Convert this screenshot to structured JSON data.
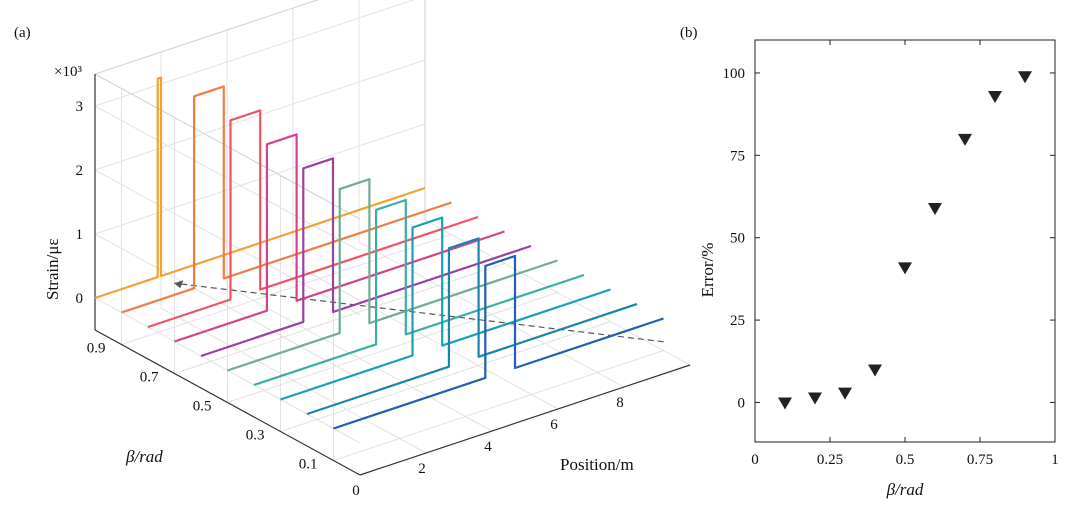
{
  "figure": {
    "panel_a_label": "(a)",
    "panel_b_label": "(b)"
  },
  "chart_data": [
    {
      "type": "line",
      "title": "",
      "xlabel": "Position/m",
      "ylabel": "β/rad",
      "zlabel": "Strain/με",
      "z_multiplier": "×10³",
      "x_ticks": [
        "0",
        "2",
        "4",
        "6",
        "8"
      ],
      "y_ticks": [
        "0.9",
        "0.7",
        "0.5",
        "0.3",
        "0.1"
      ],
      "z_ticks": [
        "0",
        "1",
        "2",
        "3"
      ],
      "xlim": [
        0,
        10
      ],
      "ylim": [
        0,
        1
      ],
      "zlim": [
        -0.5,
        3.5
      ],
      "grid": true,
      "series": [
        {
          "beta": 0.1,
          "color": "#1f5fb4",
          "segments": [
            [
              0,
              0
            ],
            [
              4.6,
              0
            ],
            [
              4.6,
              1.75
            ],
            [
              5.5,
              1.75
            ],
            [
              5.5,
              0
            ],
            [
              10,
              0
            ]
          ]
        },
        {
          "beta": 0.2,
          "color": "#1784b5",
          "segments": [
            [
              0,
              0
            ],
            [
              4.3,
              0
            ],
            [
              4.3,
              1.85
            ],
            [
              5.2,
              1.85
            ],
            [
              5.2,
              0
            ],
            [
              10,
              0
            ]
          ]
        },
        {
          "beta": 0.3,
          "color": "#19a0b4",
          "segments": [
            [
              0,
              0
            ],
            [
              4.0,
              0
            ],
            [
              4.0,
              2.0
            ],
            [
              4.9,
              2.0
            ],
            [
              4.9,
              0
            ],
            [
              10,
              0
            ]
          ]
        },
        {
          "beta": 0.4,
          "color": "#3aaea6",
          "segments": [
            [
              0,
              0
            ],
            [
              3.7,
              0
            ],
            [
              3.7,
              2.1
            ],
            [
              4.6,
              2.1
            ],
            [
              4.6,
              0
            ],
            [
              10,
              0
            ]
          ]
        },
        {
          "beta": 0.5,
          "color": "#6fac95",
          "segments": [
            [
              0,
              0
            ],
            [
              3.4,
              0
            ],
            [
              3.4,
              2.25
            ],
            [
              4.3,
              2.25
            ],
            [
              4.3,
              0
            ],
            [
              10,
              0
            ]
          ]
        },
        {
          "beta": 0.6,
          "color": "#9b3fa0",
          "segments": [
            [
              0,
              0
            ],
            [
              3.1,
              0
            ],
            [
              3.1,
              2.4
            ],
            [
              4.0,
              2.4
            ],
            [
              4.0,
              0
            ],
            [
              10,
              0
            ]
          ]
        },
        {
          "beta": 0.7,
          "color": "#d4418e",
          "segments": [
            [
              0,
              0
            ],
            [
              2.8,
              0
            ],
            [
              2.8,
              2.6
            ],
            [
              3.7,
              2.6
            ],
            [
              3.7,
              0
            ],
            [
              10,
              0
            ]
          ]
        },
        {
          "beta": 0.8,
          "color": "#ec5562",
          "segments": [
            [
              0,
              0
            ],
            [
              2.5,
              0
            ],
            [
              2.5,
              2.8
            ],
            [
              3.4,
              2.8
            ],
            [
              3.4,
              0
            ],
            [
              10,
              0
            ]
          ]
        },
        {
          "beta": 0.9,
          "color": "#f37b43",
          "segments": [
            [
              0,
              0
            ],
            [
              2.2,
              0
            ],
            [
              2.2,
              3.0
            ],
            [
              3.1,
              3.0
            ],
            [
              3.1,
              0
            ],
            [
              10,
              0
            ]
          ]
        },
        {
          "beta": 1.0,
          "color": "#f4a22d",
          "segments": [
            [
              0,
              0
            ],
            [
              1.9,
              0
            ],
            [
              1.9,
              3.1
            ],
            [
              2.0,
              3.1
            ],
            [
              2.0,
              0
            ],
            [
              10,
              0
            ]
          ]
        }
      ]
    },
    {
      "type": "scatter",
      "title": "",
      "xlabel": "β/rad",
      "ylabel": "Error/%",
      "xlim": [
        0,
        1
      ],
      "ylim": [
        -12,
        110
      ],
      "x_ticks": [
        "0",
        "0.25",
        "0.5",
        "0.75",
        "1"
      ],
      "y_ticks": [
        "0",
        "25",
        "50",
        "75",
        "100"
      ],
      "marker": "triangle-down",
      "marker_color": "#222222",
      "x": [
        0.1,
        0.2,
        0.3,
        0.4,
        0.5,
        0.6,
        0.7,
        0.8,
        0.9
      ],
      "y": [
        0,
        1.5,
        3,
        10,
        41,
        59,
        80,
        93,
        99
      ]
    }
  ]
}
